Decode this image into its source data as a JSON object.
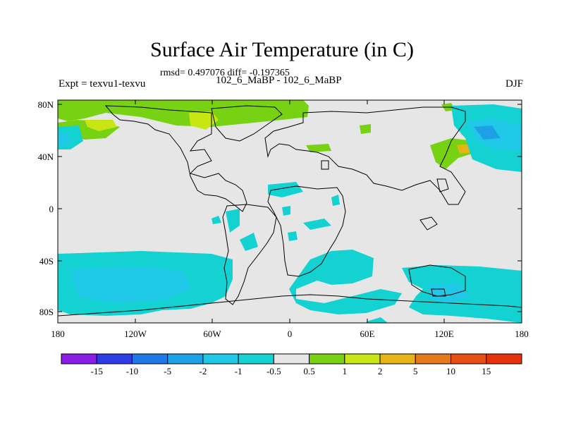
{
  "title": "Surface Air Temperature (in C)",
  "stats": "rmsd= 0.497076 diff= -0.197365",
  "left_label": "Expt = texvu1-texvu",
  "center_label": "102_6_MaBP - 102_6_MaBP",
  "right_label": "DJF",
  "map": {
    "x_ticks": [
      "180",
      "120W",
      "60W",
      "0",
      "60E",
      "120E",
      "180"
    ],
    "y_ticks": [
      "80N",
      "40N",
      "0",
      "40S",
      "80S"
    ],
    "colors": {
      "background": "#e6e6e6",
      "land_line": "#000000"
    }
  },
  "colorbar": {
    "labels": [
      "-15",
      "-10",
      "-5",
      "-2",
      "-1",
      "-0.5",
      "0.5",
      "1",
      "2",
      "5",
      "10",
      "15"
    ],
    "colors": [
      "#8a1ee6",
      "#2e3ce6",
      "#1e78e6",
      "#1ea0e6",
      "#1ec8e6",
      "#14d2d2",
      "#e6e6e6",
      "#78d214",
      "#c8e614",
      "#e6b414",
      "#e6781e",
      "#e65014",
      "#e6320a"
    ]
  }
}
